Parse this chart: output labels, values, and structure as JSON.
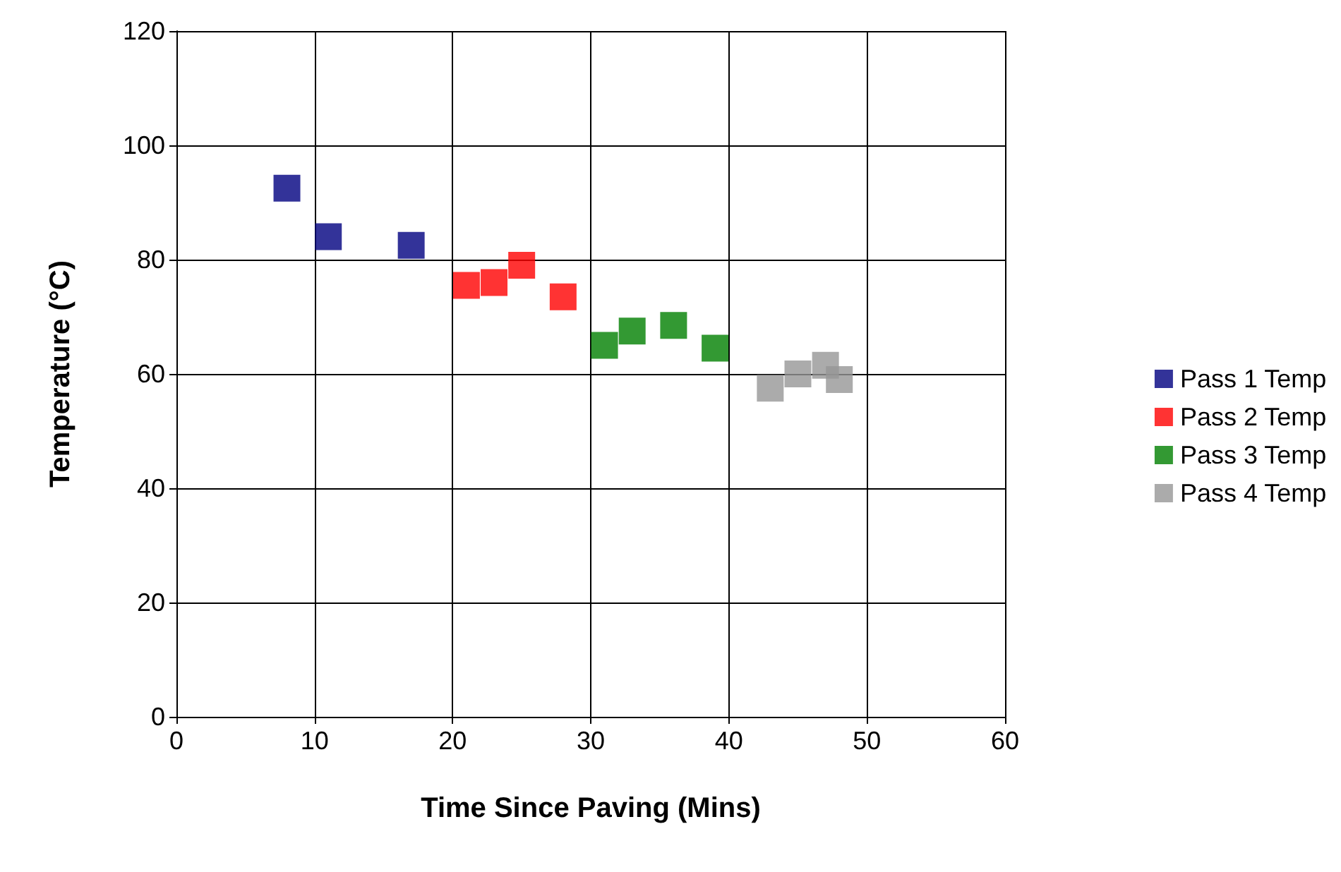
{
  "chart_data": {
    "type": "scatter",
    "xlabel": "Time Since Paving (Mins)",
    "ylabel": "Temperature (°C)",
    "xlim": [
      0,
      60
    ],
    "xticks": [
      0,
      10,
      20,
      30,
      40,
      50,
      60
    ],
    "ylim": [
      0,
      120
    ],
    "yticks": [
      0,
      20,
      40,
      60,
      80,
      100,
      120
    ],
    "grid": true,
    "legend": "right",
    "marker": "square",
    "series": [
      {
        "name": "Pass 1 Temp",
        "color": "#000080",
        "x": [
          8,
          11,
          17
        ],
        "values": [
          92.5,
          84,
          82.5
        ]
      },
      {
        "name": "Pass 2 Temp",
        "color": "#ff0000",
        "x": [
          21,
          23,
          25,
          28
        ],
        "values": [
          75.5,
          76,
          79,
          73.5
        ]
      },
      {
        "name": "Pass 3 Temp",
        "color": "#008000",
        "x": [
          31,
          33,
          36,
          39
        ],
        "values": [
          65,
          67.5,
          68.5,
          64.5
        ]
      },
      {
        "name": "Pass 4 Temp",
        "color": "#969696",
        "x": [
          43,
          45,
          47,
          48
        ],
        "values": [
          57.5,
          60,
          61.5,
          59
        ]
      }
    ]
  }
}
